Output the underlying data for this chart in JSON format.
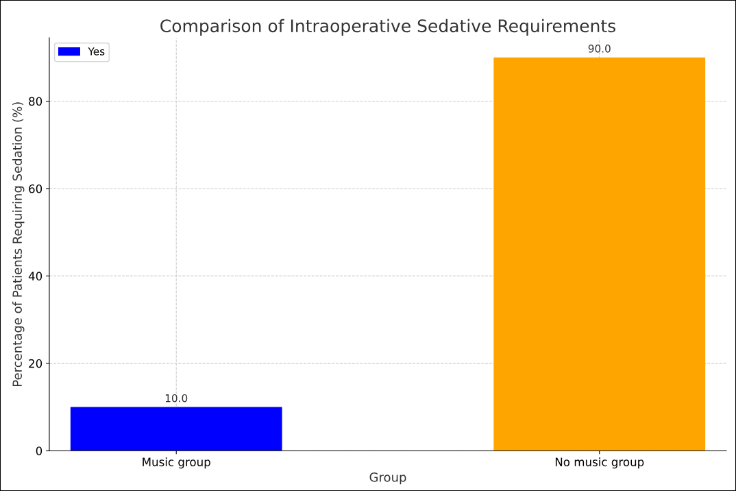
{
  "chart_data": {
    "type": "bar",
    "title": "Comparison of Intraoperative Sedative Requirements",
    "xlabel": "Group",
    "ylabel": "Percentage of Patients Requiring Sedation (%)",
    "categories": [
      "Music group",
      "No music group"
    ],
    "series": [
      {
        "name": "Yes",
        "color": "#0000ff",
        "colors": [
          "#0000ff",
          "#ffa500"
        ],
        "values": [
          10,
          90
        ],
        "value_labels": [
          "10.0",
          "90.0"
        ]
      }
    ],
    "ylim": [
      0,
      94.5
    ],
    "yticks": [
      0,
      20,
      40,
      60,
      80
    ],
    "grid": true,
    "legend": "top left"
  }
}
